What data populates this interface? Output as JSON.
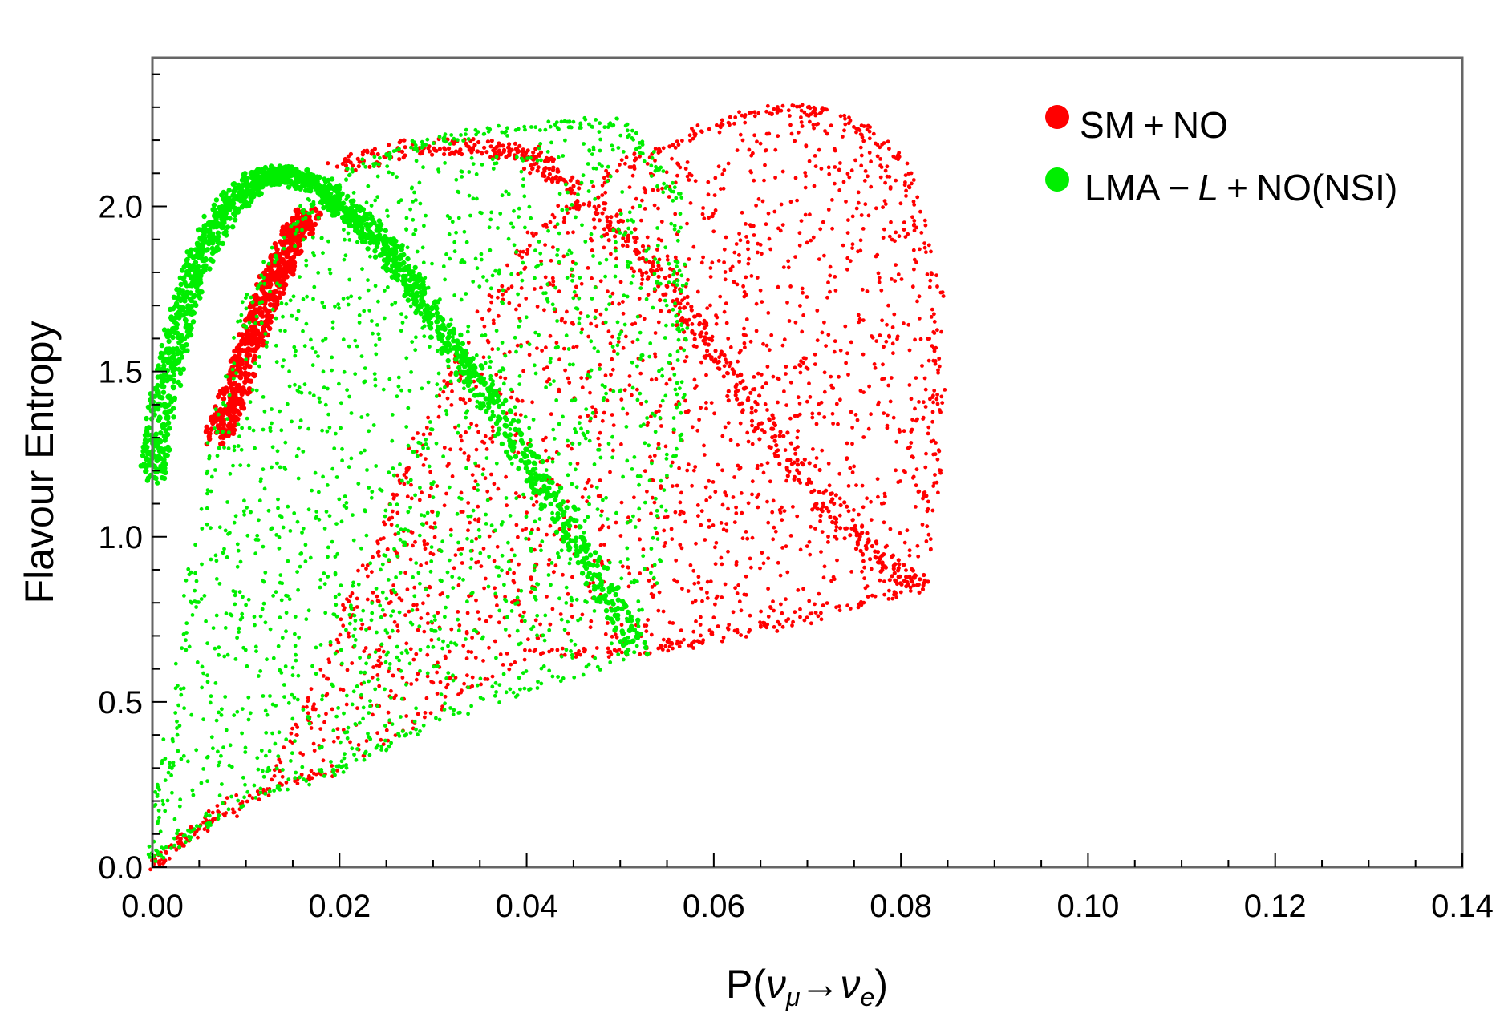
{
  "chart_data": {
    "type": "scatter",
    "title": "",
    "xlabel": {
      "prefix": "P(",
      "nu1": "ν",
      "sub1": "μ",
      "arrow": "→",
      "nu2": "ν",
      "sub2": "e",
      "suffix": ")"
    },
    "ylabel": "Flavour Entropy",
    "xlim": [
      0.0,
      0.14
    ],
    "ylim": [
      0.0,
      2.45
    ],
    "xticks": [
      "0.00",
      "0.02",
      "0.04",
      "0.06",
      "0.08",
      "0.10",
      "0.12",
      "0.14"
    ],
    "yticks": [
      "0.0",
      "0.5",
      "1.0",
      "1.5",
      "2.0"
    ],
    "grid": false,
    "legend_position": "top-right",
    "series": [
      {
        "name": "SM + NO",
        "legend_parts": [
          "SM",
          "+",
          "NO"
        ],
        "color": "#ff0000",
        "regions": [
          {
            "shape": "outer-band",
            "x": [
              0.0,
              0.004,
              0.012,
              0.018,
              0.024,
              0.032,
              0.04,
              0.05,
              0.06,
              0.068,
              0.074,
              0.08,
              0.084,
              0.084,
              0.082,
              0.07,
              0.058,
              0.052,
              0.04,
              0.02,
              0.008,
              0.0
            ],
            "y": [
              0.0,
              0.1,
              0.22,
              0.55,
              1.0,
              1.5,
              1.9,
              2.12,
              2.25,
              2.3,
              2.27,
              2.15,
              1.75,
              1.3,
              0.85,
              0.75,
              0.68,
              0.65,
              0.65,
              0.3,
              0.2,
              0.0
            ]
          },
          {
            "shape": "arc",
            "x": [
              0.02,
              0.028,
              0.036,
              0.04,
              0.044,
              0.05,
              0.056,
              0.06,
              0.066,
              0.072,
              0.078,
              0.082
            ],
            "y": [
              2.12,
              2.18,
              2.18,
              2.16,
              2.08,
              1.92,
              1.72,
              1.55,
              1.32,
              1.1,
              0.92,
              0.85
            ]
          },
          {
            "shape": "dense-band",
            "x": [
              0.007,
              0.009,
              0.011,
              0.013,
              0.015,
              0.017
            ],
            "y": [
              1.3,
              1.45,
              1.62,
              1.78,
              1.9,
              1.98
            ]
          }
        ]
      },
      {
        "name": "LMA − L + NO(NSI)",
        "legend_parts": [
          "LMA",
          "−",
          "L",
          "+",
          "NO(NSI)"
        ],
        "color": "#00ee00",
        "regions": [
          {
            "shape": "outer-band",
            "x": [
              0.0,
              0.002,
              0.006,
              0.01,
              0.016,
              0.022,
              0.03,
              0.04,
              0.05,
              0.056,
              0.057,
              0.052,
              0.031,
              0.02,
              0.008,
              0.0
            ],
            "y": [
              0.02,
              0.4,
              1.2,
              1.7,
              1.98,
              2.12,
              2.2,
              2.24,
              2.26,
              2.05,
              1.5,
              0.65,
              0.45,
              0.3,
              0.18,
              0.02
            ]
          },
          {
            "shape": "dense-band",
            "x": [
              0.0,
              0.001,
              0.003,
              0.005,
              0.008,
              0.011,
              0.014,
              0.018,
              0.022,
              0.026,
              0.03,
              0.036,
              0.044,
              0.052
            ],
            "y": [
              1.18,
              1.4,
              1.65,
              1.85,
              2.0,
              2.08,
              2.1,
              2.06,
              1.96,
              1.84,
              1.66,
              1.42,
              1.05,
              0.66
            ]
          }
        ]
      }
    ]
  }
}
